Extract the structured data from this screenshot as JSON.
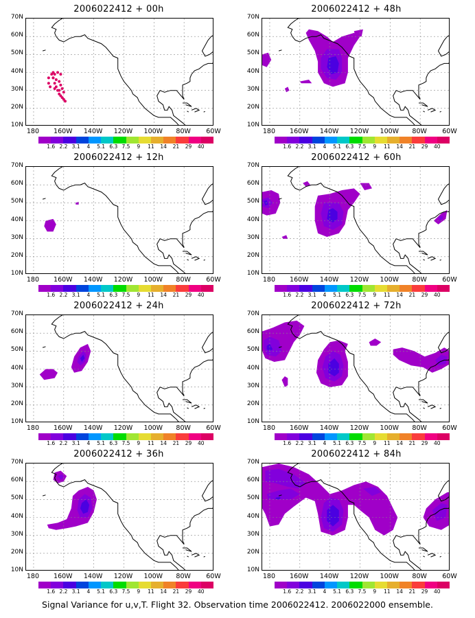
{
  "panels": [
    {
      "title": "2006022412 + 00h"
    },
    {
      "title": "2006022412 + 48h"
    },
    {
      "title": "2006022412 + 12h"
    },
    {
      "title": "2006022412 + 60h"
    },
    {
      "title": "2006022412 + 24h"
    },
    {
      "title": "2006022412 + 72h"
    },
    {
      "title": "2006022412 + 36h"
    },
    {
      "title": "2006022412 + 84h"
    }
  ],
  "lat_labels": [
    "70N",
    "60N",
    "50N",
    "40N",
    "30N",
    "20N",
    "10N"
  ],
  "lon_labels": [
    "180",
    "160W",
    "140W",
    "120W",
    "100W",
    "80W",
    "60W"
  ],
  "colorbar": {
    "labels": [
      "1.6",
      "2.2",
      "3.1",
      "4",
      "5.1",
      "6.3",
      "7.5",
      "9",
      "11",
      "14",
      "21",
      "29",
      "40"
    ],
    "colors": [
      "#a000c8",
      "#8200dc",
      "#4b00e1",
      "#0044dd",
      "#0096ff",
      "#00c8c8",
      "#00dc00",
      "#a0e632",
      "#e6dc32",
      "#e6af2d",
      "#f08228",
      "#fa3c3c",
      "#f00082",
      "#dc0064"
    ]
  },
  "footer": "Signal Variance for u,v,T. Flight 32. Observation time 2006022412. 2006022000 ensemble."
}
